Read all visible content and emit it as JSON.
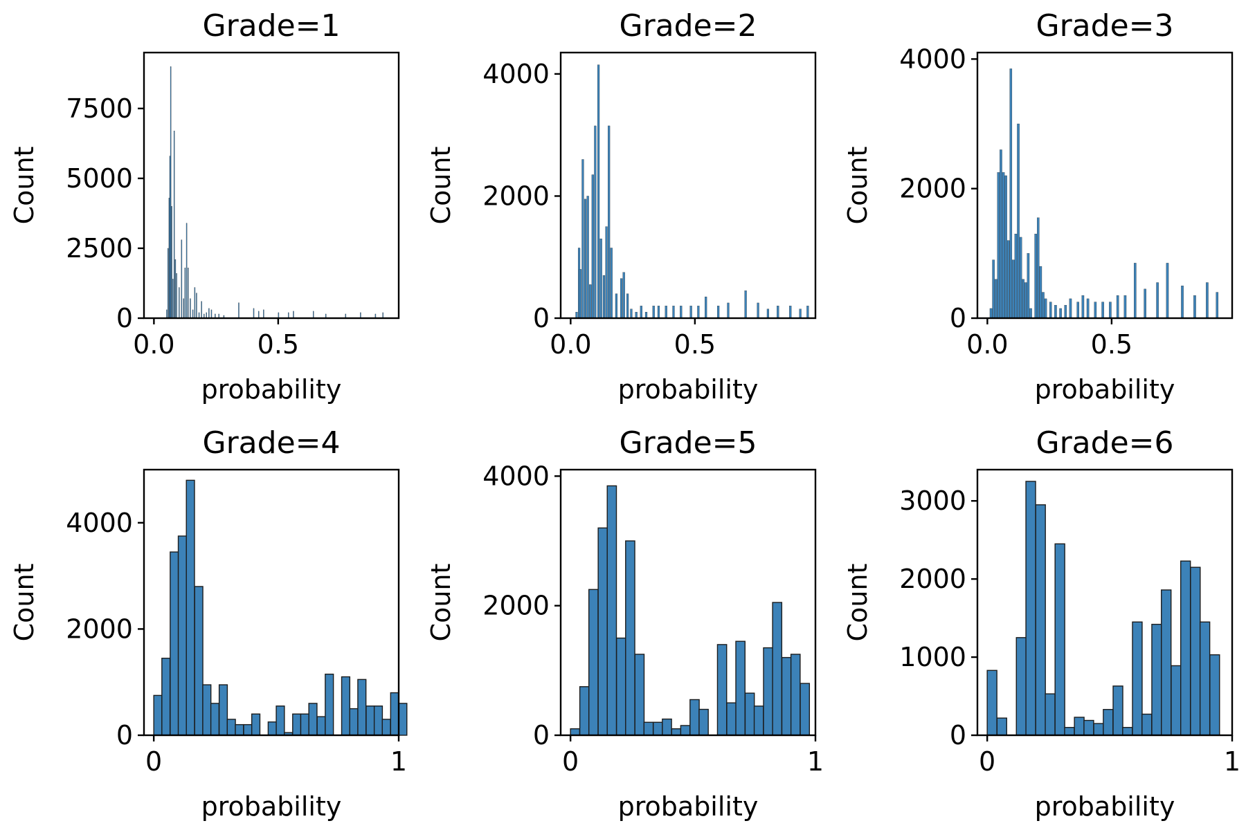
{
  "chart_data": [
    {
      "type": "bar",
      "title": "Grade=1",
      "xlabel": "probability",
      "ylabel": "Count",
      "xlim": [
        -0.04,
        0.985
      ],
      "ylim": [
        0,
        9500
      ],
      "xticks": [
        0.0,
        0.5
      ],
      "xtick_labels": [
        "0.0",
        "0.5"
      ],
      "yticks": [
        0,
        2500,
        5000,
        7500
      ],
      "ytick_labels": [
        "0",
        "2500",
        "5000",
        "7500"
      ],
      "bin_width": 0.003,
      "bins": [
        [
          0.05,
          300
        ],
        [
          0.055,
          2500
        ],
        [
          0.06,
          4300
        ],
        [
          0.063,
          5800
        ],
        [
          0.066,
          9000
        ],
        [
          0.07,
          4000
        ],
        [
          0.075,
          1400
        ],
        [
          0.08,
          6700
        ],
        [
          0.085,
          2100
        ],
        [
          0.09,
          1600
        ],
        [
          0.1,
          1100
        ],
        [
          0.11,
          2800
        ],
        [
          0.118,
          700
        ],
        [
          0.124,
          1800
        ],
        [
          0.13,
          3400
        ],
        [
          0.136,
          1800
        ],
        [
          0.145,
          700
        ],
        [
          0.155,
          300
        ],
        [
          0.163,
          1100
        ],
        [
          0.17,
          900
        ],
        [
          0.18,
          200
        ],
        [
          0.19,
          600
        ],
        [
          0.2,
          150
        ],
        [
          0.21,
          200
        ],
        [
          0.22,
          350
        ],
        [
          0.23,
          300
        ],
        [
          0.245,
          150
        ],
        [
          0.26,
          150
        ],
        [
          0.28,
          100
        ],
        [
          0.34,
          550
        ],
        [
          0.4,
          350
        ],
        [
          0.42,
          250
        ],
        [
          0.44,
          300
        ],
        [
          0.5,
          200
        ],
        [
          0.54,
          200
        ],
        [
          0.56,
          250
        ],
        [
          0.64,
          250
        ],
        [
          0.69,
          150
        ],
        [
          0.77,
          150
        ],
        [
          0.83,
          200
        ],
        [
          0.89,
          150
        ],
        [
          0.92,
          200
        ]
      ]
    },
    {
      "type": "bar",
      "title": "Grade=2",
      "xlabel": "probability",
      "ylabel": "Count",
      "xlim": [
        -0.04,
        0.985
      ],
      "ylim": [
        0,
        4350
      ],
      "xticks": [
        0.0,
        0.5
      ],
      "xtick_labels": [
        "0.0",
        "0.5"
      ],
      "yticks": [
        0,
        2000,
        4000
      ],
      "ytick_labels": [
        "0",
        "2000",
        "4000"
      ],
      "bin_width": 0.008,
      "bins": [
        [
          0.02,
          100
        ],
        [
          0.03,
          1150
        ],
        [
          0.035,
          800
        ],
        [
          0.045,
          2600
        ],
        [
          0.055,
          1950
        ],
        [
          0.065,
          2000
        ],
        [
          0.075,
          550
        ],
        [
          0.085,
          2350
        ],
        [
          0.095,
          3150
        ],
        [
          0.108,
          4150
        ],
        [
          0.118,
          1300
        ],
        [
          0.13,
          700
        ],
        [
          0.14,
          1500
        ],
        [
          0.15,
          3150
        ],
        [
          0.16,
          1150
        ],
        [
          0.18,
          400
        ],
        [
          0.2,
          650
        ],
        [
          0.21,
          750
        ],
        [
          0.225,
          400
        ],
        [
          0.24,
          150
        ],
        [
          0.26,
          100
        ],
        [
          0.28,
          200
        ],
        [
          0.3,
          100
        ],
        [
          0.33,
          200
        ],
        [
          0.35,
          200
        ],
        [
          0.38,
          200
        ],
        [
          0.41,
          200
        ],
        [
          0.44,
          200
        ],
        [
          0.48,
          200
        ],
        [
          0.51,
          200
        ],
        [
          0.54,
          350
        ],
        [
          0.59,
          200
        ],
        [
          0.63,
          250
        ],
        [
          0.7,
          450
        ],
        [
          0.75,
          250
        ],
        [
          0.79,
          150
        ],
        [
          0.83,
          200
        ],
        [
          0.88,
          200
        ],
        [
          0.92,
          150
        ],
        [
          0.95,
          200
        ]
      ]
    },
    {
      "type": "bar",
      "title": "Grade=3",
      "xlabel": "probability",
      "ylabel": "Count",
      "xlim": [
        -0.04,
        0.985
      ],
      "ylim": [
        0,
        4100
      ],
      "xticks": [
        0.0,
        0.5
      ],
      "xtick_labels": [
        "0.0",
        "0.5"
      ],
      "yticks": [
        0,
        2000,
        4000
      ],
      "ytick_labels": [
        "0",
        "2000",
        "4000"
      ],
      "bin_width": 0.009,
      "bins": [
        [
          0.01,
          150
        ],
        [
          0.02,
          900
        ],
        [
          0.03,
          600
        ],
        [
          0.04,
          2250
        ],
        [
          0.05,
          2600
        ],
        [
          0.06,
          2250
        ],
        [
          0.07,
          2200
        ],
        [
          0.08,
          1200
        ],
        [
          0.09,
          3850
        ],
        [
          0.1,
          900
        ],
        [
          0.11,
          1300
        ],
        [
          0.12,
          3000
        ],
        [
          0.13,
          1250
        ],
        [
          0.14,
          600
        ],
        [
          0.15,
          550
        ],
        [
          0.16,
          1000
        ],
        [
          0.17,
          150
        ],
        [
          0.19,
          1300
        ],
        [
          0.2,
          1550
        ],
        [
          0.21,
          800
        ],
        [
          0.22,
          400
        ],
        [
          0.23,
          300
        ],
        [
          0.25,
          250
        ],
        [
          0.27,
          200
        ],
        [
          0.29,
          150
        ],
        [
          0.31,
          200
        ],
        [
          0.33,
          300
        ],
        [
          0.36,
          250
        ],
        [
          0.38,
          350
        ],
        [
          0.4,
          300
        ],
        [
          0.43,
          250
        ],
        [
          0.46,
          250
        ],
        [
          0.49,
          250
        ],
        [
          0.52,
          350
        ],
        [
          0.55,
          350
        ],
        [
          0.59,
          850
        ],
        [
          0.63,
          450
        ],
        [
          0.68,
          550
        ],
        [
          0.72,
          850
        ],
        [
          0.78,
          500
        ],
        [
          0.83,
          350
        ],
        [
          0.88,
          550
        ],
        [
          0.92,
          400
        ]
      ]
    },
    {
      "type": "bar",
      "title": "Grade=4",
      "xlabel": "probability",
      "ylabel": "Count",
      "xlim": [
        -0.04,
        1.0
      ],
      "ylim": [
        0,
        5000
      ],
      "xticks": [
        0,
        1
      ],
      "xtick_labels": [
        "0",
        "1"
      ],
      "yticks": [
        0,
        2000,
        4000
      ],
      "ytick_labels": [
        "0",
        "2000",
        "4000"
      ],
      "bin_width": 0.0333,
      "bins": [
        [
          0.0,
          750
        ],
        [
          0.033,
          1450
        ],
        [
          0.067,
          3450
        ],
        [
          0.1,
          3750
        ],
        [
          0.133,
          4800
        ],
        [
          0.167,
          2800
        ],
        [
          0.2,
          950
        ],
        [
          0.233,
          600
        ],
        [
          0.267,
          950
        ],
        [
          0.3,
          300
        ],
        [
          0.333,
          200
        ],
        [
          0.367,
          200
        ],
        [
          0.4,
          400
        ],
        [
          0.433,
          0
        ],
        [
          0.467,
          250
        ],
        [
          0.5,
          550
        ],
        [
          0.533,
          50
        ],
        [
          0.567,
          400
        ],
        [
          0.6,
          400
        ],
        [
          0.633,
          600
        ],
        [
          0.667,
          350
        ],
        [
          0.7,
          1150
        ],
        [
          0.733,
          0
        ],
        [
          0.767,
          1100
        ],
        [
          0.8,
          500
        ],
        [
          0.833,
          1050
        ],
        [
          0.867,
          550
        ],
        [
          0.9,
          550
        ],
        [
          0.933,
          300
        ],
        [
          0.967,
          800
        ],
        [
          1.0,
          600
        ]
      ]
    },
    {
      "type": "bar",
      "title": "Grade=5",
      "xlabel": "probability",
      "ylabel": "Count",
      "xlim": [
        -0.04,
        1.0
      ],
      "ylim": [
        0,
        4100
      ],
      "xticks": [
        0,
        1
      ],
      "xtick_labels": [
        "0",
        "1"
      ],
      "yticks": [
        0,
        2000,
        4000
      ],
      "ytick_labels": [
        "0",
        "2000",
        "4000"
      ],
      "bin_width": 0.0375,
      "bins": [
        [
          0.0,
          100
        ],
        [
          0.038,
          750
        ],
        [
          0.075,
          2250
        ],
        [
          0.113,
          3200
        ],
        [
          0.15,
          3850
        ],
        [
          0.188,
          1500
        ],
        [
          0.225,
          3000
        ],
        [
          0.263,
          1250
        ],
        [
          0.3,
          200
        ],
        [
          0.338,
          200
        ],
        [
          0.375,
          250
        ],
        [
          0.413,
          100
        ],
        [
          0.45,
          150
        ],
        [
          0.488,
          550
        ],
        [
          0.525,
          400
        ],
        [
          0.563,
          0
        ],
        [
          0.6,
          1400
        ],
        [
          0.638,
          500
        ],
        [
          0.675,
          1450
        ],
        [
          0.713,
          650
        ],
        [
          0.75,
          450
        ],
        [
          0.788,
          1350
        ],
        [
          0.825,
          2050
        ],
        [
          0.863,
          1200
        ],
        [
          0.9,
          1250
        ],
        [
          0.938,
          800
        ]
      ]
    },
    {
      "type": "bar",
      "title": "Grade=6",
      "xlabel": "probability",
      "ylabel": "Count",
      "xlim": [
        -0.04,
        1.0
      ],
      "ylim": [
        0,
        3400
      ],
      "xticks": [
        0,
        1
      ],
      "xtick_labels": [
        "0",
        "1"
      ],
      "yticks": [
        0,
        1000,
        2000,
        3000
      ],
      "ytick_labels": [
        "0",
        "1000",
        "2000",
        "3000"
      ],
      "bin_width": 0.0395,
      "bins": [
        [
          0.0,
          830
        ],
        [
          0.04,
          220
        ],
        [
          0.08,
          0
        ],
        [
          0.119,
          1250
        ],
        [
          0.158,
          3250
        ],
        [
          0.198,
          2950
        ],
        [
          0.237,
          530
        ],
        [
          0.277,
          2450
        ],
        [
          0.316,
          100
        ],
        [
          0.356,
          230
        ],
        [
          0.395,
          190
        ],
        [
          0.435,
          150
        ],
        [
          0.474,
          330
        ],
        [
          0.514,
          630
        ],
        [
          0.553,
          100
        ],
        [
          0.593,
          1450
        ],
        [
          0.632,
          270
        ],
        [
          0.672,
          1420
        ],
        [
          0.711,
          1860
        ],
        [
          0.751,
          890
        ],
        [
          0.79,
          2230
        ],
        [
          0.83,
          2150
        ],
        [
          0.869,
          1450
        ],
        [
          0.909,
          1030
        ]
      ]
    }
  ]
}
